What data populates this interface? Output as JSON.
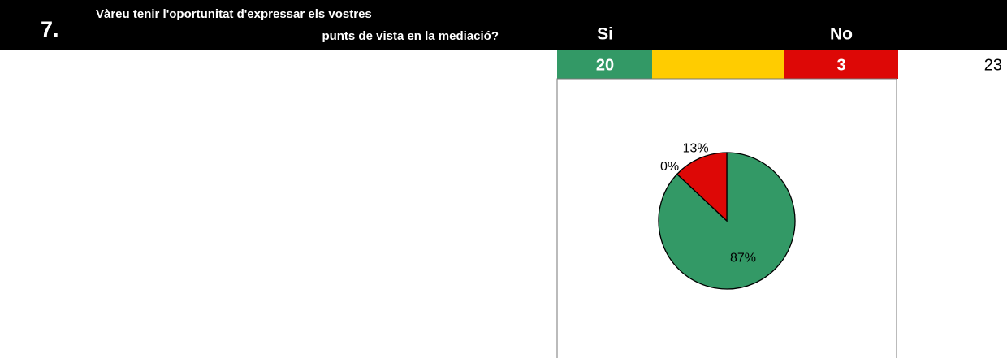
{
  "question": {
    "number": "7.",
    "line1": "Vàreu tenir l'oportunitat d'expressar els vostres",
    "line2": "punts de vista en la mediació?"
  },
  "table": {
    "headers": [
      "Si",
      "No"
    ],
    "si": 20,
    "no": 3,
    "total": 23
  },
  "chart_data": {
    "type": "pie",
    "values": [
      87,
      0,
      13
    ],
    "value_labels": [
      "87%",
      "0%",
      "13%"
    ],
    "colors": [
      "#339966",
      "#ffcc00",
      "#dd0806"
    ]
  }
}
